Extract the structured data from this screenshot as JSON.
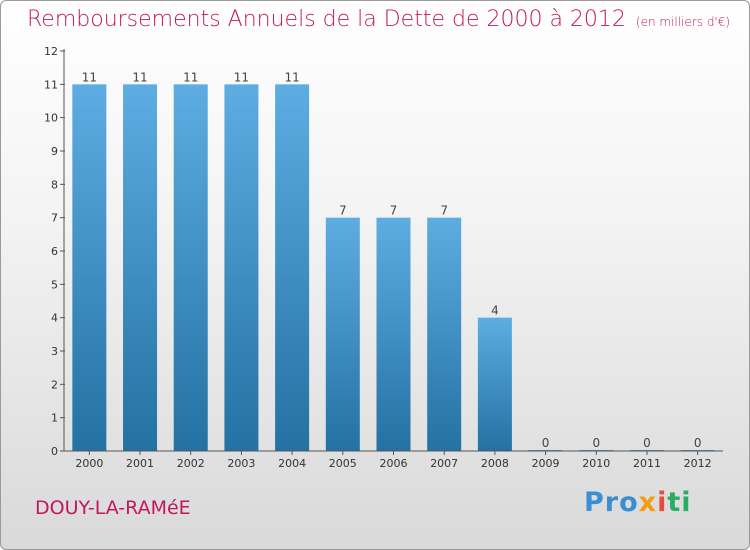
{
  "header": {
    "title": "Remboursements Annuels de la Dette de 2000 à 2012",
    "unit": "(en milliers d'€)"
  },
  "footer": {
    "commune": "DOUY-LA-RAMéE",
    "logo": [
      "Pro",
      "x",
      "i",
      "ti"
    ]
  },
  "colors": {
    "title": "#c2185b",
    "bar_top": "#5dade2",
    "bar_bottom": "#2471a3"
  },
  "chart_data": {
    "type": "bar",
    "categories": [
      "2000",
      "2001",
      "2002",
      "2003",
      "2004",
      "2005",
      "2006",
      "2007",
      "2008",
      "2009",
      "2010",
      "2011",
      "2012"
    ],
    "values": [
      11,
      11,
      11,
      11,
      11,
      7,
      7,
      7,
      4,
      0,
      0,
      0,
      0
    ],
    "data_labels": [
      "11",
      "11",
      "11",
      "11",
      "11",
      "7",
      "7",
      "7",
      "4",
      "0",
      "0",
      "0",
      "0"
    ],
    "yticks": [
      "0",
      "1",
      "2",
      "3",
      "4",
      "5",
      "6",
      "7",
      "8",
      "9",
      "10",
      "11",
      "12"
    ],
    "ylim": [
      0,
      12
    ],
    "grid": false,
    "legend": "none"
  }
}
